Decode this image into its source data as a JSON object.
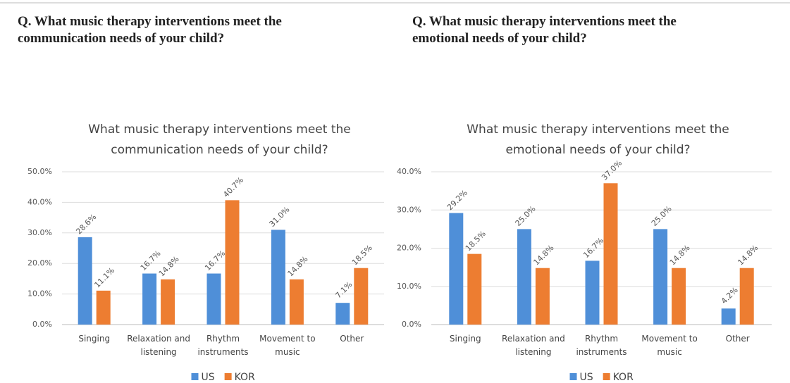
{
  "headings": [
    "Q. What music therapy interventions meet the communication needs of your child?",
    "Q. What music therapy interventions meet the emotional needs of your child?"
  ],
  "chart_data": [
    {
      "type": "bar",
      "title": "What music therapy interventions meet the communication needs of your child?",
      "categories": [
        "Singing",
        "Relaxation and listening",
        "Rhythm instruments",
        "Movement to music",
        "Other"
      ],
      "series": [
        {
          "name": "US",
          "color": "#4f8fd8",
          "values": [
            28.6,
            16.7,
            16.7,
            31.0,
            7.1
          ],
          "value_labels": [
            "28.6%",
            "16.7%",
            "16.7%",
            "31.0%",
            "7.1%"
          ]
        },
        {
          "name": "KOR",
          "color": "#ed7d31",
          "values": [
            11.1,
            14.8,
            40.7,
            14.8,
            18.5
          ],
          "value_labels": [
            "11.1%",
            "14.8%",
            "40.7%",
            "14.8%",
            "18.5%"
          ]
        }
      ],
      "ylim": [
        0,
        50
      ],
      "yticks": [
        {
          "value": 0,
          "label": "0.0%"
        },
        {
          "value": 10,
          "label": "10.0%"
        },
        {
          "value": 20,
          "label": "20.0%"
        },
        {
          "value": 30,
          "label": "30.0%"
        },
        {
          "value": 40,
          "label": "40.0%"
        },
        {
          "value": 50,
          "label": "50.0%"
        }
      ],
      "grid": true,
      "legend": "bottom"
    },
    {
      "type": "bar",
      "title": "What music therapy interventions meet the emotional needs of your child?",
      "categories": [
        "Singing",
        "Relaxation and listening",
        "Rhythm instruments",
        "Movement to music",
        "Other"
      ],
      "series": [
        {
          "name": "US",
          "color": "#4f8fd8",
          "values": [
            29.2,
            25.0,
            16.7,
            25.0,
            4.2
          ],
          "value_labels": [
            "29.2%",
            "25.0%",
            "16.7%",
            "25.0%",
            "4.2%"
          ]
        },
        {
          "name": "KOR",
          "color": "#ed7d31",
          "values": [
            18.5,
            14.8,
            37.0,
            14.8,
            14.8
          ],
          "value_labels": [
            "18.5%",
            "14.8%",
            "37.0%",
            "14.8%",
            "14.8%"
          ]
        }
      ],
      "ylim": [
        0,
        40
      ],
      "yticks": [
        {
          "value": 0,
          "label": "0.0%"
        },
        {
          "value": 10,
          "label": "10.0%"
        },
        {
          "value": 20,
          "label": "20.0%"
        },
        {
          "value": 30,
          "label": "30.0%"
        },
        {
          "value": 40,
          "label": "40.0%"
        }
      ],
      "grid": true,
      "legend": "bottom"
    }
  ]
}
